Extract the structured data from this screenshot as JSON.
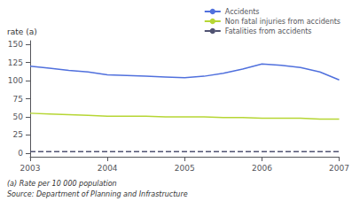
{
  "chart_data": {
    "type": "line",
    "x": [
      2003,
      2003.25,
      2003.5,
      2003.75,
      2004,
      2004.25,
      2004.5,
      2004.75,
      2005,
      2005.25,
      2005.5,
      2005.75,
      2006,
      2006.25,
      2006.5,
      2006.75,
      2007
    ],
    "series": [
      {
        "name": "Accidents",
        "values": [
          120,
          117,
          114,
          112,
          108,
          107,
          106,
          105,
          104,
          106,
          110,
          116,
          123,
          121,
          118,
          112,
          101
        ],
        "line_style": "solid"
      },
      {
        "name": "Non fatal injuries from accidents",
        "values": [
          55,
          54,
          53,
          52,
          51,
          51,
          51,
          50,
          50,
          50,
          49,
          49,
          48,
          48,
          48,
          47,
          47
        ],
        "line_style": "solid"
      },
      {
        "name": "Fatalities from accidents",
        "values": [
          2,
          2,
          2,
          2,
          2,
          2,
          2,
          2,
          2,
          2,
          2,
          2,
          2,
          2,
          2,
          2,
          2
        ],
        "line_style": "dashed"
      }
    ],
    "xlim": [
      2003,
      2007
    ],
    "xticks": [
      2003,
      2004,
      2005,
      2006,
      2007
    ],
    "ylim": [
      -5,
      155
    ],
    "yticks": [
      0,
      25,
      50,
      75,
      100,
      125,
      150
    ],
    "ylabel": "rate (a)",
    "annotations": [
      "(a) Rate per 10 000 population",
      "Source: Department of Planning and Infrastructure"
    ],
    "legend": "upper right",
    "grid": false
  }
}
